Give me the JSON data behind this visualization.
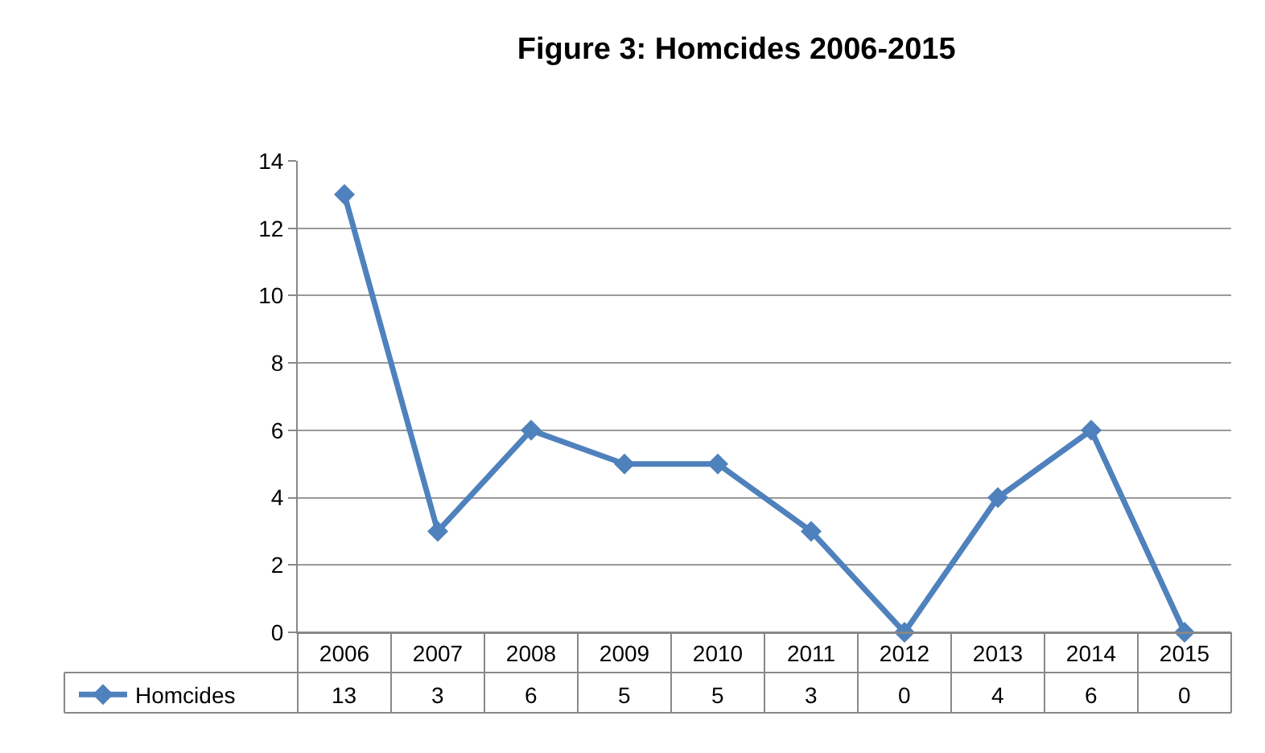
{
  "chart_data": {
    "type": "line",
    "title": "Figure 3: Homcides 2006-2015",
    "categories": [
      "2006",
      "2007",
      "2008",
      "2009",
      "2010",
      "2011",
      "2012",
      "2013",
      "2014",
      "2015"
    ],
    "series": [
      {
        "name": "Homcides",
        "color": "#4f81bd",
        "values": [
          13,
          3,
          6,
          5,
          5,
          3,
          0,
          4,
          6,
          0
        ]
      }
    ],
    "ylim": [
      0,
      14
    ],
    "yticks": [
      0,
      2,
      4,
      6,
      8,
      10,
      12,
      14
    ],
    "grid": "y",
    "legend": "bottom left",
    "marker": "diamond",
    "line_style": "solid",
    "data_labels": true
  }
}
